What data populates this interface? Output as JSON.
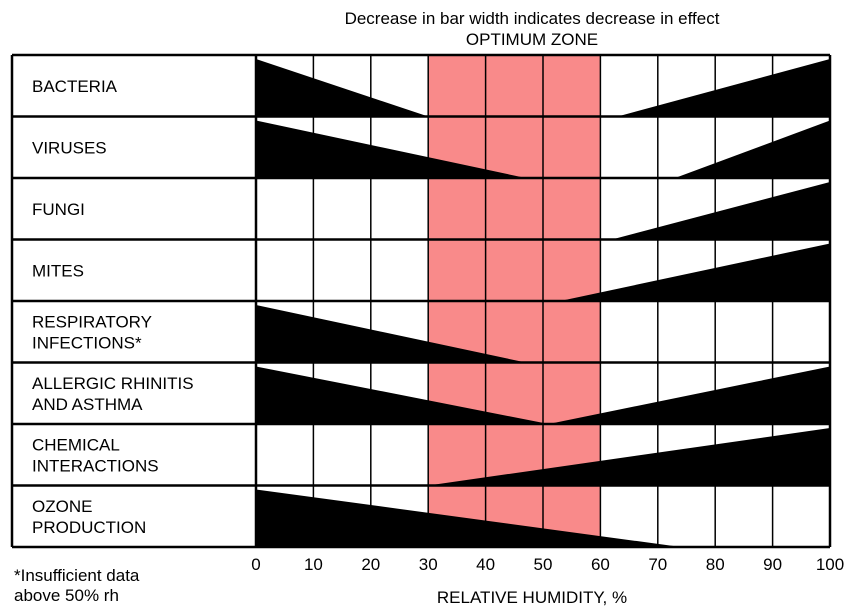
{
  "chart_data": {
    "type": "bar",
    "title": "Decrease in bar width indicates decrease in effect",
    "optimum_zone": {
      "label": "OPTIMUM ZONE",
      "range": [
        30,
        60
      ],
      "color": "#f98a8a"
    },
    "xlabel": "RELATIVE HUMIDITY, %",
    "xlim": [
      0,
      100
    ],
    "x_ticks": [
      "0",
      "10",
      "20",
      "30",
      "40",
      "50",
      "60",
      "70",
      "80",
      "90",
      "100"
    ],
    "grid": true,
    "footnote": "*Insufficient data\n above 50% rh",
    "series": [
      {
        "name": "BACTERIA",
        "label_lines": [
          "BACTERIA"
        ],
        "effect": [
          {
            "x": [
              0,
              30
            ],
            "value": [
              1.0,
              0.0
            ]
          },
          {
            "x": [
              63,
              100
            ],
            "value": [
              0.0,
              1.0
            ]
          }
        ]
      },
      {
        "name": "VIRUSES",
        "label_lines": [
          "VIRUSES"
        ],
        "effect": [
          {
            "x": [
              0,
              47
            ],
            "value": [
              1.0,
              0.0
            ]
          },
          {
            "x": [
              73,
              100
            ],
            "value": [
              0.0,
              1.0
            ]
          }
        ]
      },
      {
        "name": "FUNGI",
        "label_lines": [
          "FUNGI"
        ],
        "effect": [
          {
            "x": [
              62,
              100
            ],
            "value": [
              0.0,
              1.0
            ]
          }
        ]
      },
      {
        "name": "MITES",
        "label_lines": [
          "MITES"
        ],
        "effect": [
          {
            "x": [
              53,
              100
            ],
            "value": [
              0.0,
              1.0
            ]
          }
        ]
      },
      {
        "name": "RESPIRATORY INFECTIONS*",
        "label_lines": [
          "RESPIRATORY",
          "INFECTIONS*"
        ],
        "effect": [
          {
            "x": [
              0,
              47
            ],
            "value": [
              1.0,
              0.0
            ]
          }
        ]
      },
      {
        "name": "ALLERGIC RHINITIS AND ASTHMA",
        "label_lines": [
          "ALLERGIC RHINITIS",
          "AND ASTHMA"
        ],
        "effect": [
          {
            "x": [
              0,
              51
            ],
            "value": [
              1.0,
              0.0
            ]
          },
          {
            "x": [
              51,
              100
            ],
            "value": [
              0.0,
              1.0
            ]
          }
        ]
      },
      {
        "name": "CHEMICAL INTERACTIONS",
        "label_lines": [
          "CHEMICAL",
          "INTERACTIONS"
        ],
        "effect": [
          {
            "x": [
              30,
              100
            ],
            "value": [
              0.0,
              1.0
            ]
          }
        ]
      },
      {
        "name": "OZONE PRODUCTION",
        "label_lines": [
          "OZONE",
          "PRODUCTION"
        ],
        "effect": [
          {
            "x": [
              0,
              74
            ],
            "value": [
              1.0,
              0.0
            ]
          }
        ]
      }
    ]
  }
}
